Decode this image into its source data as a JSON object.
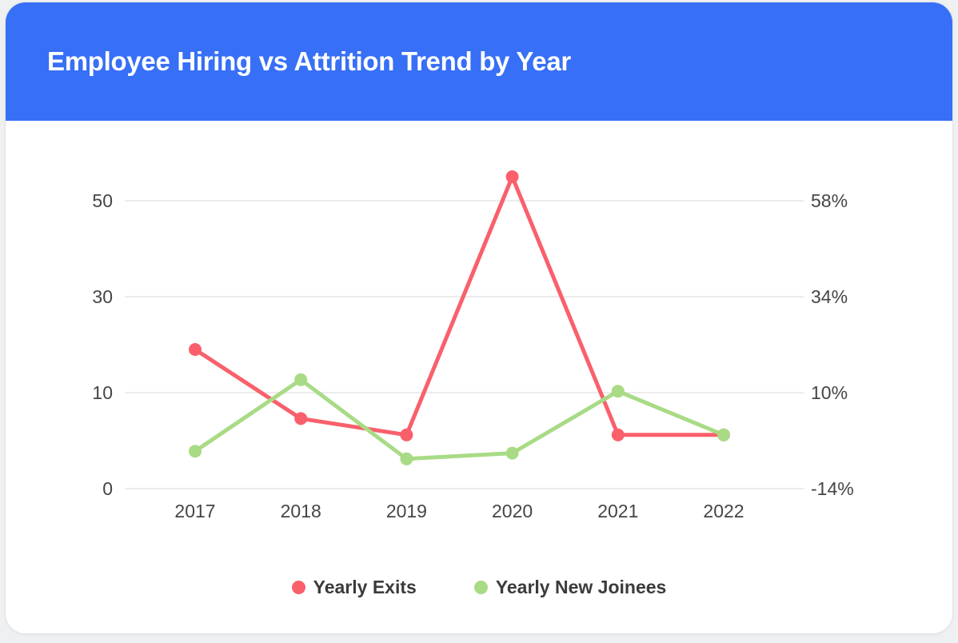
{
  "header": {
    "title": "Employee Hiring vs Attrition Trend by Year",
    "background_color": "#376FF6",
    "text_color": "#FFFFFF"
  },
  "chart_data": {
    "type": "line",
    "title": "Employee Hiring vs Attrition Trend by Year",
    "categories": [
      "2017",
      "2018",
      "2019",
      "2020",
      "2021",
      "2022"
    ],
    "series": [
      {
        "name": "Yearly Exits",
        "color": "#F9606B",
        "values": [
          19,
          7.3,
          5.6,
          55,
          5.6,
          5.6
        ]
      },
      {
        "name": "Yearly New Joinees",
        "color": "#A9DB86",
        "values": [
          3.9,
          12.7,
          3.1,
          3.7,
          10.3,
          5.6
        ]
      }
    ],
    "left_axis": {
      "ticks": [
        "50",
        "30",
        "10",
        "0"
      ],
      "tick_values": [
        50,
        30,
        10,
        0
      ]
    },
    "right_axis": {
      "ticks": [
        "58%",
        "34%",
        "10%",
        "-14%"
      ],
      "tick_values": [
        58,
        34,
        10,
        -14
      ]
    },
    "grid": true,
    "gridline_color": "#ECECEC",
    "legend_position": "bottom"
  }
}
